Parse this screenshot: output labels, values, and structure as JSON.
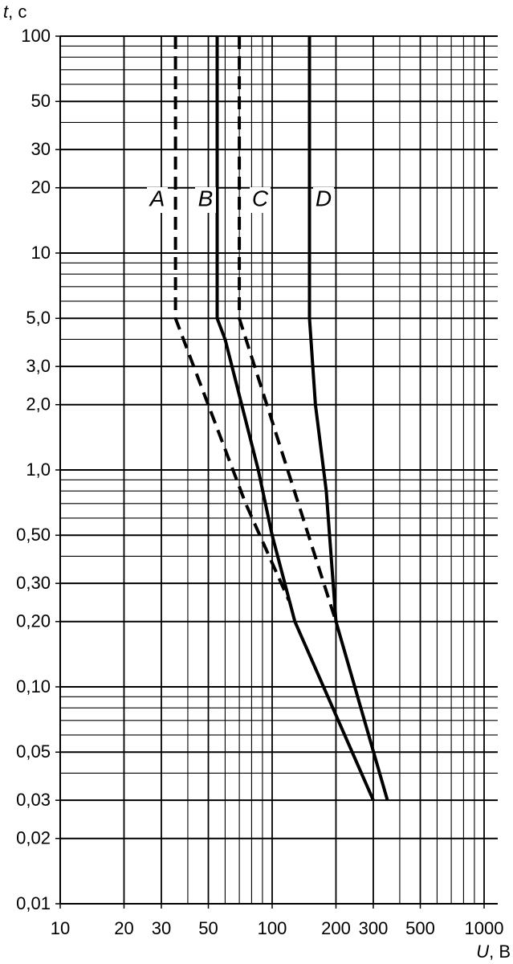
{
  "chart_data": {
    "type": "line",
    "y_label_symbol": "t",
    "y_label_unit": ", c",
    "x_label_symbol": "U",
    "x_label_unit": ", B",
    "xscale": "log",
    "yscale": "log",
    "xlim": [
      10,
      1000
    ],
    "ylim": [
      0.01,
      100
    ],
    "xticks": [
      10,
      20,
      30,
      50,
      100,
      200,
      300,
      500,
      1000
    ],
    "yticks": [
      {
        "value": 0.01,
        "label": "0,01"
      },
      {
        "value": 0.02,
        "label": "0,02"
      },
      {
        "value": 0.03,
        "label": "0,03"
      },
      {
        "value": 0.05,
        "label": "0,05"
      },
      {
        "value": 0.1,
        "label": "0,10"
      },
      {
        "value": 0.2,
        "label": "0,20"
      },
      {
        "value": 0.3,
        "label": "0,30"
      },
      {
        "value": 0.5,
        "label": "0,50"
      },
      {
        "value": 1,
        "label": "1,0"
      },
      {
        "value": 2,
        "label": "2,0"
      },
      {
        "value": 3,
        "label": "3,0"
      },
      {
        "value": 5,
        "label": "5,0"
      },
      10,
      20,
      30,
      50,
      100
    ],
    "xgrid": [
      10,
      20,
      30,
      40,
      50,
      60,
      70,
      80,
      90,
      100,
      200,
      300,
      400,
      500,
      600,
      700,
      800,
      900,
      1000
    ],
    "ygrid": [
      0.01,
      0.02,
      0.03,
      0.04,
      0.05,
      0.06,
      0.07,
      0.08,
      0.09,
      0.1,
      0.2,
      0.3,
      0.4,
      0.5,
      0.6,
      0.7,
      0.8,
      0.9,
      1,
      2,
      3,
      4,
      5,
      6,
      7,
      8,
      9,
      10,
      20,
      30,
      40,
      50,
      60,
      70,
      80,
      90,
      100
    ],
    "grid": true,
    "series": [
      {
        "name": "A",
        "color": "#000000",
        "style": "dashed",
        "x": [
          35,
          35,
          75,
          120
        ],
        "values": [
          100,
          5,
          0.7,
          0.25
        ]
      },
      {
        "name": "B",
        "color": "#000000",
        "style": "solid",
        "x": [
          55,
          55,
          60,
          86,
          100,
          128,
          300
        ],
        "values": [
          100,
          5,
          4,
          1,
          0.5,
          0.2,
          0.03
        ]
      },
      {
        "name": "C",
        "color": "#000000",
        "style": "dashed",
        "x": [
          70,
          70,
          200
        ],
        "values": [
          100,
          5,
          0.2
        ]
      },
      {
        "name": "D",
        "color": "#000000",
        "style": "solid",
        "x": [
          150,
          150,
          160,
          180,
          200,
          350
        ],
        "values": [
          100,
          5,
          2,
          0.8,
          0.2,
          0.03
        ]
      }
    ]
  }
}
